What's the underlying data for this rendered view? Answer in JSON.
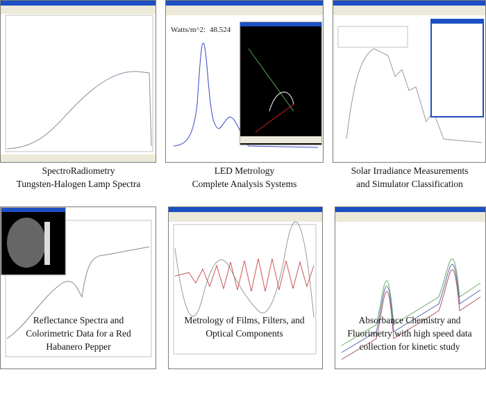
{
  "panels": [
    {
      "caption": [
        "SpectroRadiometry",
        "Tungsten-Halogen Lamp Spectra"
      ]
    },
    {
      "caption": [
        "LED Metrology",
        "Complete Analysis Systems"
      ],
      "reading_label": "Watts/m^2:",
      "reading_value": "48.524"
    },
    {
      "caption": [
        "Solar Irradiance Measurements",
        "and Simulator Classification"
      ]
    },
    {
      "caption": [
        "Reflectance Spectra and",
        "Colorimetric Data for a Red",
        "Habanero Pepper"
      ]
    },
    {
      "caption": [
        "Metrology of Films, Filters, and",
        "Optical Components"
      ]
    },
    {
      "caption": [
        "Absorbance Chemistry and",
        "Fluorimetry with high speed data",
        "collection for kinetic study"
      ]
    }
  ]
}
